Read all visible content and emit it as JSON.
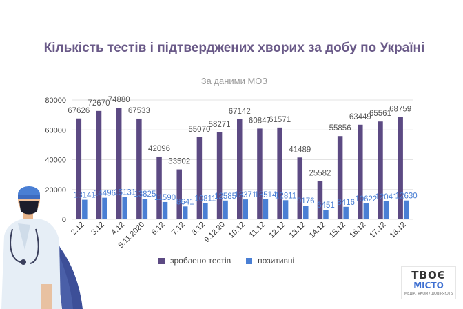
{
  "chart_data": {
    "type": "bar",
    "title": "Кількість тестів і підтверджених хворих за добу по Україні",
    "subtitle": "За даними МОЗ",
    "categories": [
      "2.12",
      "3.12",
      "4.12",
      "5.11.2020",
      "6.12",
      "7.12",
      "8.12",
      "9.12.20",
      "10.12",
      "11.12",
      "12.12",
      "13.12",
      "14.12",
      "15.12",
      "16.12",
      "17.12",
      "18.12"
    ],
    "series": [
      {
        "name": "зроблено тестів",
        "color": "#5c4a83",
        "values": [
          67626,
          72670,
          74880,
          67533,
          42096,
          33502,
          55070,
          58271,
          67142,
          60847,
          61571,
          41489,
          25582,
          55856,
          63449,
          65561,
          68759
        ]
      },
      {
        "name": "позитивні",
        "color": "#4a7fd4",
        "values": [
          13141,
          14496,
          15131,
          13825,
          11590,
          8641,
          10811,
          12585,
          13371,
          13514,
          12811,
          9176,
          6451,
          8416,
          10622,
          12041,
          12630
        ]
      }
    ],
    "yticks": [
      0,
      20000,
      40000,
      60000,
      80000
    ],
    "ylim": [
      0,
      80000
    ],
    "grid": true,
    "legend": "bottom-center"
  },
  "logo": {
    "line1": "ТВОЄ",
    "line2": "МІСТО",
    "line3": "МЕДІА, ЯКОМУ ДОВІРЯЮТЬ"
  }
}
